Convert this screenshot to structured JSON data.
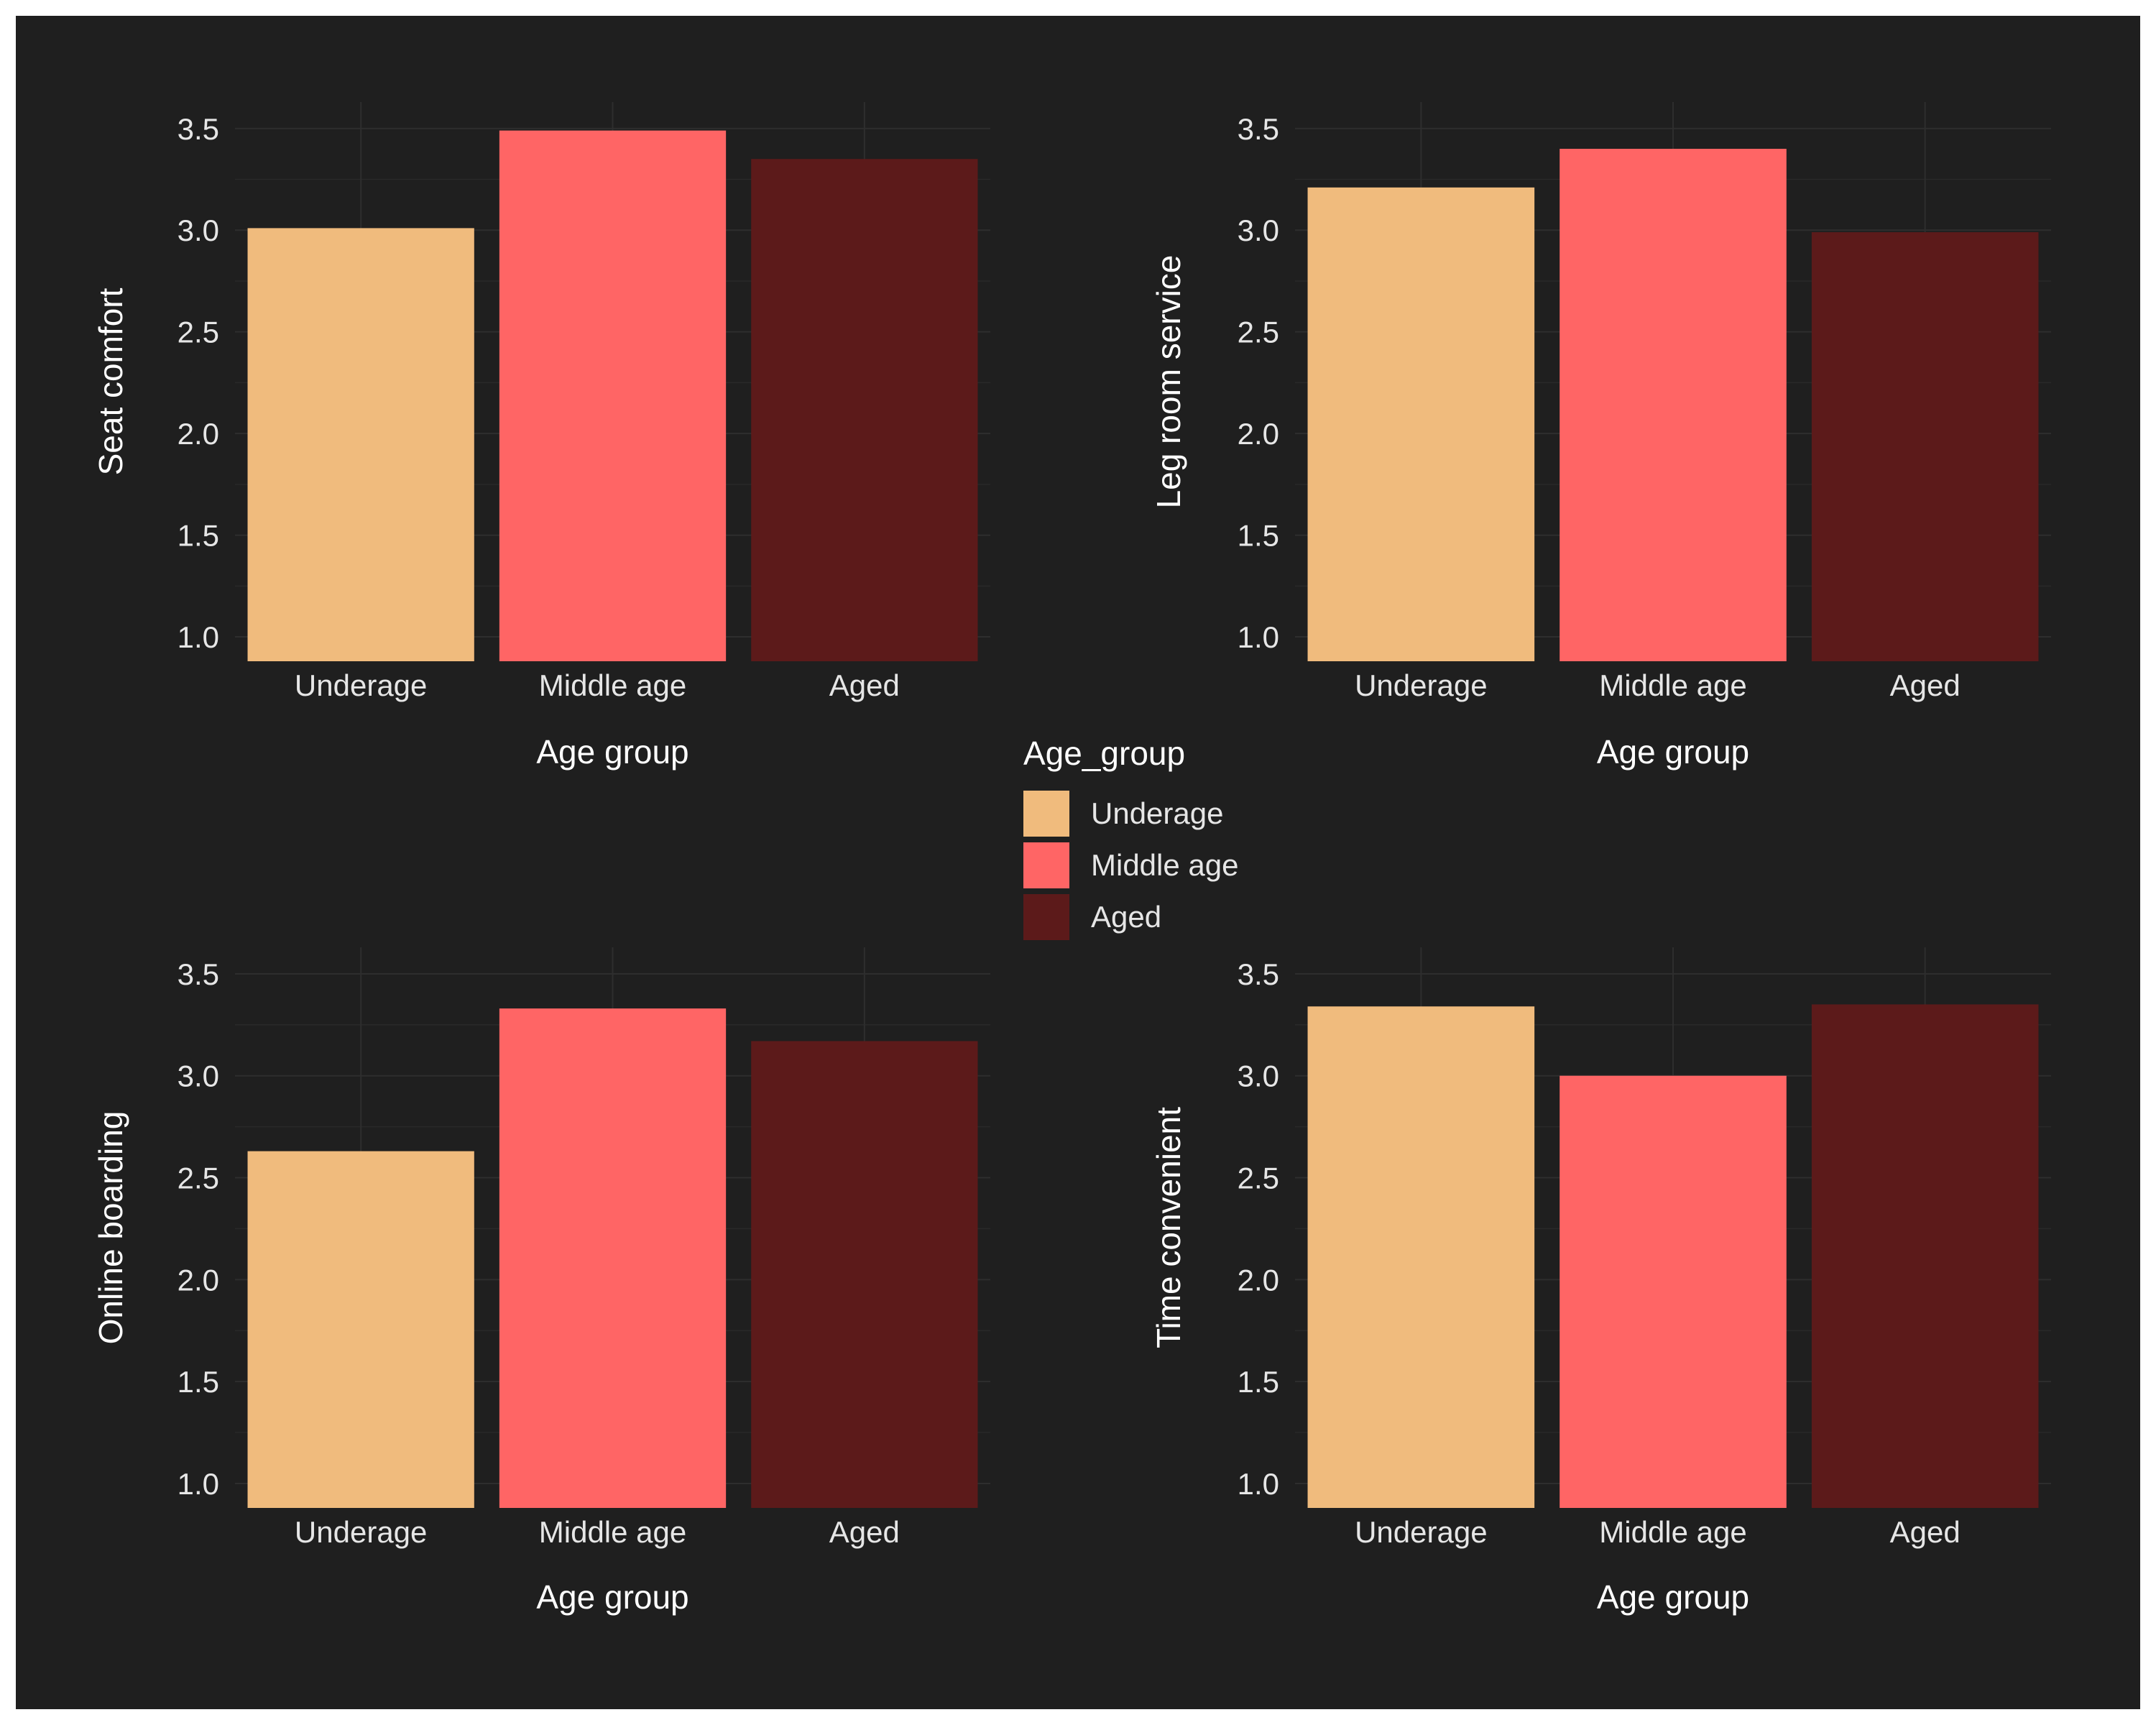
{
  "chart_data": [
    {
      "type": "bar",
      "categories": [
        "Underage",
        "Middle age",
        "Aged"
      ],
      "values": [
        3.01,
        3.49,
        3.35
      ],
      "xlabel": "Age group",
      "ylabel": "Seat comfort",
      "ylim": [
        0.88,
        3.63
      ],
      "yticks": [
        "1.0",
        "1.5",
        "2.0",
        "2.5",
        "3.0",
        "3.5"
      ],
      "grid": true
    },
    {
      "type": "bar",
      "categories": [
        "Underage",
        "Middle age",
        "Aged"
      ],
      "values": [
        3.21,
        3.4,
        2.99
      ],
      "xlabel": "Age group",
      "ylabel": "Leg room service",
      "ylim": [
        0.88,
        3.63
      ],
      "yticks": [
        "1.0",
        "1.5",
        "2.0",
        "2.5",
        "3.0",
        "3.5"
      ],
      "grid": true
    },
    {
      "type": "bar",
      "categories": [
        "Underage",
        "Middle age",
        "Aged"
      ],
      "values": [
        2.63,
        3.33,
        3.17
      ],
      "xlabel": "Age group",
      "ylabel": "Online boarding",
      "ylim": [
        0.88,
        3.63
      ],
      "yticks": [
        "1.0",
        "1.5",
        "2.0",
        "2.5",
        "3.0",
        "3.5"
      ],
      "grid": true
    },
    {
      "type": "bar",
      "categories": [
        "Underage",
        "Middle age",
        "Aged"
      ],
      "values": [
        3.34,
        3.0,
        3.35
      ],
      "xlabel": "Age group",
      "ylabel": "Time convenient",
      "ylim": [
        0.88,
        3.63
      ],
      "yticks": [
        "1.0",
        "1.5",
        "2.0",
        "2.5",
        "3.0",
        "3.5"
      ],
      "grid": true
    }
  ],
  "legend": {
    "title": "Age_group",
    "placement": "center",
    "items": [
      {
        "label": "Underage",
        "color": "#f0bb7d"
      },
      {
        "label": "Middle age",
        "color": "#ff6565"
      },
      {
        "label": "Aged",
        "color": "#5c1a1a"
      }
    ]
  },
  "colors": {
    "background": "#1f1f1f",
    "underage": "#f0bb7d",
    "middle_age": "#ff6565",
    "aged": "#5c1a1a"
  }
}
